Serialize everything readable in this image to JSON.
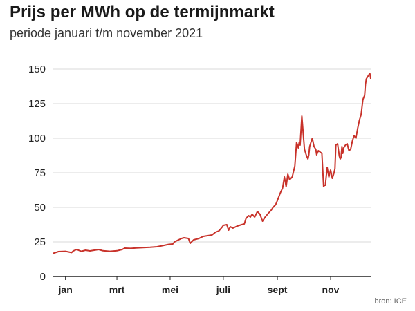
{
  "chart_data": {
    "type": "line",
    "title": "Prijs per MWh op de termijnmarkt",
    "subtitle": "periode januari t/m november 2021",
    "source": "bron: ICE",
    "xlabel": "",
    "ylabel": "",
    "ylim": [
      0,
      150
    ],
    "yticks": [
      "0",
      "25",
      "50",
      "75",
      "100",
      "125",
      "150"
    ],
    "xticks": [
      {
        "label": "jan",
        "day": 15
      },
      {
        "label": "mrt",
        "day": 74
      },
      {
        "label": "mei",
        "day": 135
      },
      {
        "label": "juli",
        "day": 196
      },
      {
        "label": "sept",
        "day": 258
      },
      {
        "label": "nov",
        "day": 319
      }
    ],
    "grid": "horizontal",
    "line_color": "#c8322a",
    "x_unit": "day of year 2021",
    "series": [
      {
        "x": [
          1,
          7,
          15,
          22,
          24,
          28,
          33,
          38,
          43,
          48,
          53,
          58,
          66,
          74,
          80,
          83,
          90,
          96,
          104,
          112,
          120,
          128,
          133,
          138,
          140,
          143,
          148,
          151,
          156,
          158,
          162,
          168,
          173,
          178,
          183,
          187,
          191,
          193,
          195,
          196,
          200,
          202,
          204,
          207,
          212,
          217,
          220,
          222,
          225,
          227,
          229,
          232,
          235,
          238,
          241,
          244,
          248,
          251,
          253,
          256,
          258,
          261,
          264,
          266,
          268,
          270,
          272,
          275,
          278,
          280,
          282,
          283,
          284,
          286,
          289,
          291,
          293,
          294,
          295,
          298,
          300,
          302,
          303,
          305,
          309,
          311,
          312,
          313,
          315,
          317,
          319,
          321,
          323,
          324,
          325,
          327,
          329,
          330,
          331,
          332,
          333,
          334,
          336,
          338,
          340,
          342,
          344,
          346,
          348,
          350,
          352,
          354,
          356,
          358,
          359,
          360,
          361,
          362,
          363,
          364,
          365
        ],
        "values": [
          16.8,
          18,
          18.2,
          17.3,
          18.5,
          19.5,
          18.2,
          19,
          18.5,
          19,
          19.5,
          18.6,
          18.2,
          18.6,
          19.5,
          20.5,
          20.3,
          20.6,
          20.9,
          21.1,
          21.5,
          22.5,
          23.2,
          23.5,
          25,
          26,
          27.5,
          28,
          27.5,
          24,
          26.5,
          27.5,
          29,
          29.5,
          30,
          32,
          33,
          34.5,
          36,
          37,
          37.5,
          33.5,
          36,
          35,
          36.5,
          37.5,
          38,
          42,
          44,
          43,
          45,
          43,
          47,
          45,
          40,
          43,
          46,
          48,
          50,
          52,
          55,
          60,
          64,
          72,
          65,
          74,
          70,
          72,
          80,
          97,
          93,
          97,
          95,
          116,
          92,
          88,
          85,
          88,
          94,
          100,
          94,
          92,
          88,
          91,
          89,
          65,
          66,
          66,
          79,
          72,
          77,
          71,
          75,
          78,
          95,
          96,
          87,
          85,
          86,
          94,
          89,
          93,
          95,
          96,
          91,
          92,
          98,
          102,
          100,
          107,
          113,
          117,
          128,
          131,
          139,
          143,
          144,
          145,
          146,
          147,
          143
        ]
      }
    ]
  }
}
